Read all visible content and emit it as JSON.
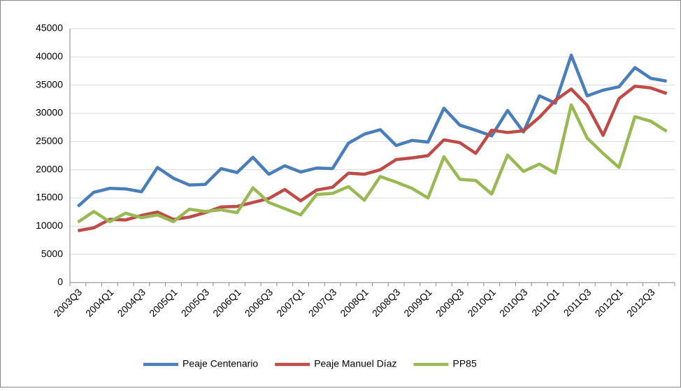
{
  "chart_data": {
    "type": "line",
    "categories": [
      "2003Q3",
      null,
      "2004Q1",
      null,
      "2004Q3",
      null,
      "2005Q1",
      null,
      "2005Q3",
      null,
      "2006Q1",
      null,
      "2006Q3",
      null,
      "2007Q1",
      null,
      "2007Q3",
      null,
      "2008Q1",
      null,
      "2008Q3",
      null,
      "2009Q1",
      null,
      "2009Q3",
      null,
      "2010Q1",
      null,
      "2010Q3",
      null,
      "2011Q1",
      null,
      "2011Q3",
      null,
      "2012Q1",
      null,
      "2012Q3",
      null
    ],
    "series": [
      {
        "name": "Peaje Centenario",
        "color": "#4a7ebb",
        "values": [
          13500,
          16000,
          16700,
          16600,
          16100,
          20400,
          18500,
          17300,
          17400,
          20200,
          19500,
          22200,
          19200,
          20700,
          19600,
          20300,
          20200,
          24700,
          26300,
          27100,
          24300,
          25200,
          24900,
          30900,
          27900,
          27000,
          26000,
          30500,
          26700,
          33100,
          31800,
          40300,
          33100,
          34100,
          34700,
          38100,
          36200,
          35700
        ]
      },
      {
        "name": "Peaje Manuel Díaz",
        "color": "#be4b48",
        "values": [
          9200,
          9700,
          11200,
          11100,
          11900,
          12500,
          11200,
          11600,
          12400,
          13400,
          13500,
          14200,
          14900,
          16500,
          14500,
          16400,
          16900,
          19400,
          19200,
          20000,
          21800,
          22100,
          22500,
          25300,
          24800,
          22900,
          27000,
          26600,
          26900,
          29300,
          32300,
          34300,
          31400,
          26100,
          32600,
          34800,
          34500,
          33500
        ]
      },
      {
        "name": "PP85",
        "color": "#98b954",
        "values": [
          10700,
          12600,
          10800,
          12300,
          11500,
          12000,
          10800,
          13000,
          12600,
          12900,
          12400,
          16800,
          14200,
          13100,
          12000,
          15600,
          15800,
          17000,
          14600,
          18800,
          17800,
          16700,
          15000,
          22300,
          18300,
          18100,
          15700,
          22600,
          19700,
          21000,
          19400,
          31500,
          25600,
          22900,
          20400,
          29400,
          28600,
          26800
        ]
      }
    ],
    "ylim": [
      0,
      45000
    ],
    "yticks": [
      0,
      5000,
      10000,
      15000,
      20000,
      25000,
      30000,
      35000,
      40000,
      45000
    ],
    "grid": true,
    "legend": "bottom"
  }
}
